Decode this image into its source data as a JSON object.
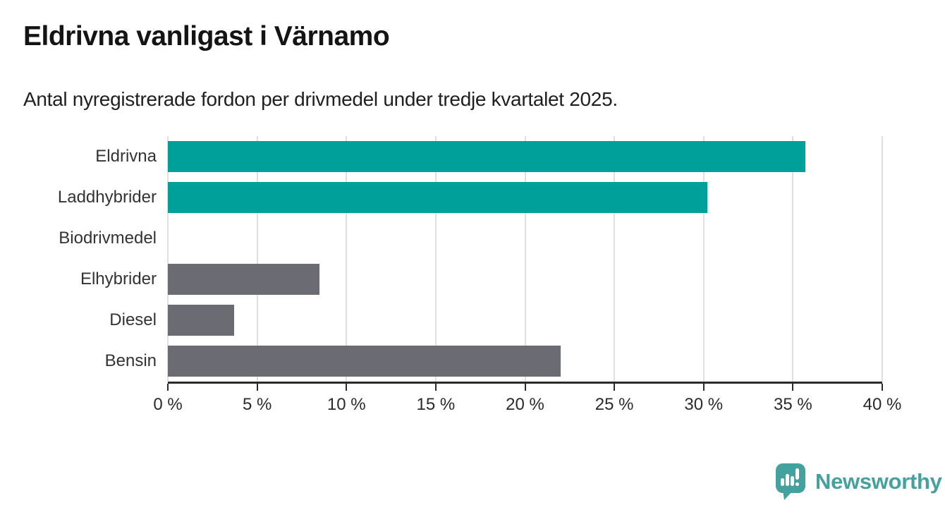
{
  "header": {
    "title": "Eldrivna vanligast i Värnamo",
    "subtitle": "Antal nyregistrerade fordon per drivmedel under tredje kvartalet 2025."
  },
  "chart_data": {
    "type": "bar",
    "orientation": "horizontal",
    "title": "Eldrivna vanligast i Värnamo",
    "subtitle": "Antal nyregistrerade fordon per drivmedel under tredje kvartalet 2025.",
    "categories": [
      "Eldrivna",
      "Laddhybrider",
      "Biodrivmedel",
      "Elhybrider",
      "Diesel",
      "Bensin"
    ],
    "values": [
      35.7,
      30.2,
      0,
      8.5,
      3.7,
      22.0
    ],
    "unit": "%",
    "xlim": [
      0,
      40
    ],
    "x_tick_values": [
      0,
      5,
      10,
      15,
      20,
      25,
      30,
      35,
      40
    ],
    "x_tick_labels": [
      "0 %",
      "5 %",
      "10 %",
      "15 %",
      "20 %",
      "25 %",
      "30 %",
      "35 %",
      "40 %"
    ],
    "grid": true,
    "legend": "none",
    "bar_colors": [
      "#00a09a",
      "#00a09a",
      "#6b6b73",
      "#6b6b73",
      "#6b6b73",
      "#6b6b73"
    ],
    "colors": {
      "highlight": "#00a09a",
      "default": "#6b6b73",
      "gridline": "#e0e0e0",
      "axis": "#2b2b2b"
    }
  },
  "footer": {
    "brand": "Newsworthy",
    "brand_color": "#45a19d",
    "logo_icon": "newsworthy-pin-chart-icon"
  }
}
